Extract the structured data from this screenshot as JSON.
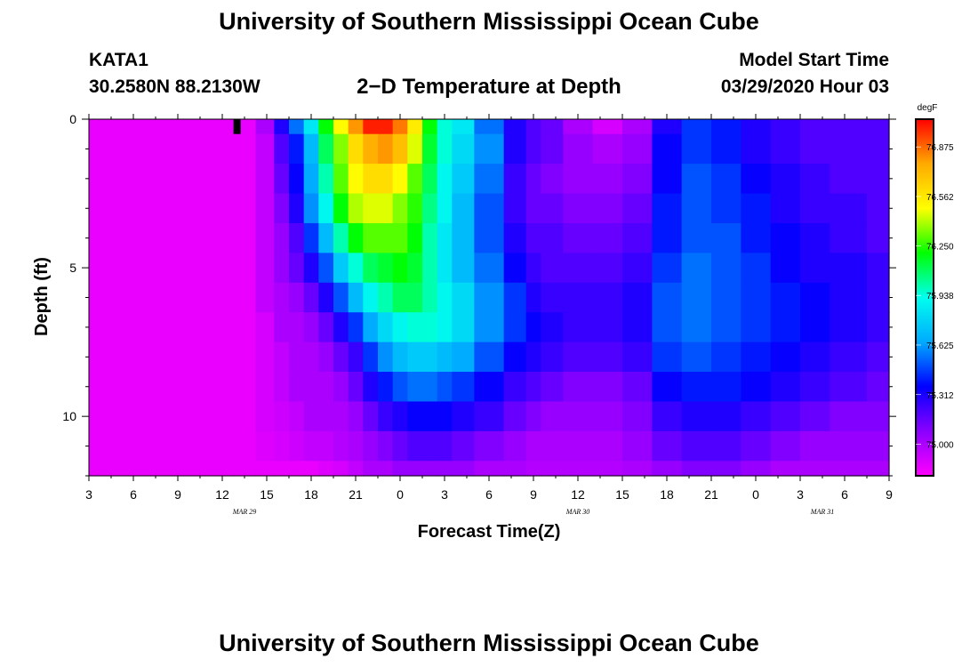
{
  "header": {
    "title": "University of Southern Mississippi Ocean Cube",
    "station": "KATA1",
    "coords": "30.2580N 88.2130W",
    "subtitle": "2−D Temperature at Depth",
    "start_label": "Model Start Time",
    "start_value": "03/29/2020 Hour 03",
    "footer_title": "University of Southern Mississippi Ocean Cube"
  },
  "chart_data": {
    "type": "heatmap",
    "title": "2−D Temperature at Depth",
    "xlabel": "Forecast Time(Z)",
    "ylabel": "Depth (ft)",
    "x_tick_labels": [
      "3",
      "6",
      "9",
      "12",
      "15",
      "18",
      "21",
      "0",
      "3",
      "6",
      "9",
      "12",
      "15",
      "18",
      "21",
      "0",
      "3",
      "6",
      "9"
    ],
    "x_range_hours": [
      3,
      57
    ],
    "date_labels": [
      {
        "text": "MAR 29",
        "at_hour": 13.5
      },
      {
        "text": "MAR 30",
        "at_hour": 36
      },
      {
        "text": "MAR 31",
        "at_hour": 52.5
      }
    ],
    "y_tick_labels": [
      "0",
      "5",
      "10"
    ],
    "ylim": [
      0,
      12
    ],
    "y_inverted": true,
    "colorbar": {
      "unit": "degF",
      "labels": [
        "76.875",
        "76.562",
        "76.250",
        "75.938",
        "75.625",
        "75.312",
        "75.000"
      ],
      "min": 74.8,
      "max": 77.05,
      "colors": [
        "#ff00ff",
        "#8a00ff",
        "#0000ff",
        "#00aaff",
        "#00ffee",
        "#00ff00",
        "#ffff00",
        "#ffaa00",
        "#ff0000"
      ]
    },
    "marker": {
      "hour": 13,
      "depth_top": 0,
      "depth_bottom": 0.5,
      "color": "#000000"
    },
    "depth_levels": [
      0,
      1,
      2,
      3,
      4,
      5,
      6,
      7,
      8,
      9,
      10,
      11,
      12
    ],
    "time_hours": [
      3,
      6,
      9,
      12,
      13.5,
      15,
      16,
      17,
      18,
      19,
      20,
      21,
      22,
      23,
      24,
      25,
      26,
      27,
      28,
      30,
      32,
      33,
      34,
      36,
      38,
      40,
      42,
      44,
      46,
      48,
      50,
      52,
      54,
      57
    ],
    "temperature_degF": [
      [
        74.85,
        74.85,
        74.85,
        74.85,
        74.85,
        75.0,
        75.3,
        75.55,
        75.85,
        76.2,
        76.5,
        76.8,
        77.0,
        77.0,
        76.85,
        76.55,
        76.2,
        75.95,
        75.85,
        75.55,
        75.3,
        75.2,
        75.15,
        75.0,
        74.9,
        75.0,
        75.3,
        75.45,
        75.4,
        75.3,
        75.25,
        75.2,
        75.2,
        75.2
      ],
      [
        74.85,
        74.85,
        74.85,
        74.85,
        74.85,
        74.95,
        75.2,
        75.4,
        75.7,
        76.1,
        76.35,
        76.6,
        76.75,
        76.8,
        76.7,
        76.45,
        76.15,
        75.95,
        75.8,
        75.6,
        75.3,
        75.2,
        75.15,
        75.05,
        75.0,
        75.05,
        75.35,
        75.45,
        75.4,
        75.3,
        75.25,
        75.2,
        75.2,
        75.2
      ],
      [
        74.85,
        74.85,
        74.85,
        74.85,
        74.85,
        74.95,
        75.15,
        75.35,
        75.65,
        76.0,
        76.3,
        76.5,
        76.6,
        76.6,
        76.5,
        76.3,
        76.1,
        75.9,
        75.75,
        75.55,
        75.25,
        75.15,
        75.1,
        75.05,
        75.05,
        75.1,
        75.35,
        75.5,
        75.45,
        75.35,
        75.3,
        75.25,
        75.2,
        75.2
      ],
      [
        74.85,
        74.85,
        74.85,
        74.85,
        74.85,
        74.95,
        75.1,
        75.3,
        75.6,
        75.9,
        76.2,
        76.4,
        76.45,
        76.45,
        76.35,
        76.25,
        76.05,
        75.9,
        75.7,
        75.5,
        75.25,
        75.15,
        75.15,
        75.1,
        75.1,
        75.15,
        75.4,
        75.5,
        75.45,
        75.4,
        75.3,
        75.25,
        75.25,
        75.2
      ],
      [
        74.85,
        74.85,
        74.85,
        74.85,
        74.85,
        74.95,
        75.05,
        75.2,
        75.45,
        75.7,
        76.0,
        76.2,
        76.3,
        76.3,
        76.3,
        76.2,
        76.0,
        75.85,
        75.7,
        75.5,
        75.3,
        75.2,
        75.2,
        75.15,
        75.15,
        75.2,
        75.4,
        75.5,
        75.5,
        75.4,
        75.35,
        75.3,
        75.25,
        75.2
      ],
      [
        74.85,
        74.85,
        74.85,
        74.85,
        74.85,
        74.95,
        75.05,
        75.15,
        75.3,
        75.5,
        75.75,
        75.95,
        76.1,
        76.15,
        76.2,
        76.15,
        76.0,
        75.85,
        75.7,
        75.55,
        75.35,
        75.25,
        75.2,
        75.2,
        75.2,
        75.25,
        75.45,
        75.55,
        75.5,
        75.45,
        75.35,
        75.3,
        75.3,
        75.25
      ],
      [
        74.85,
        74.85,
        74.85,
        74.85,
        74.85,
        74.95,
        75.0,
        75.05,
        75.15,
        75.3,
        75.5,
        75.7,
        75.9,
        76.0,
        76.1,
        76.1,
        76.0,
        75.9,
        75.8,
        75.6,
        75.45,
        75.3,
        75.25,
        75.25,
        75.25,
        75.3,
        75.5,
        75.55,
        75.5,
        75.45,
        75.4,
        75.35,
        75.3,
        75.25
      ],
      [
        74.85,
        74.85,
        74.85,
        74.85,
        74.85,
        74.9,
        75.0,
        75.0,
        75.05,
        75.15,
        75.3,
        75.45,
        75.65,
        75.8,
        75.9,
        75.95,
        75.95,
        75.9,
        75.8,
        75.6,
        75.45,
        75.35,
        75.3,
        75.25,
        75.25,
        75.3,
        75.5,
        75.55,
        75.5,
        75.45,
        75.4,
        75.35,
        75.3,
        75.25
      ],
      [
        74.85,
        74.85,
        74.85,
        74.85,
        74.85,
        74.9,
        74.95,
        75.0,
        75.0,
        75.05,
        75.15,
        75.25,
        75.45,
        75.6,
        75.7,
        75.75,
        75.75,
        75.7,
        75.65,
        75.5,
        75.35,
        75.3,
        75.25,
        75.2,
        75.2,
        75.25,
        75.45,
        75.5,
        75.45,
        75.4,
        75.35,
        75.3,
        75.25,
        75.2
      ],
      [
        74.85,
        74.85,
        74.85,
        74.85,
        74.85,
        74.9,
        74.95,
        75.0,
        75.0,
        75.0,
        75.05,
        75.15,
        75.3,
        75.4,
        75.5,
        75.55,
        75.55,
        75.5,
        75.45,
        75.35,
        75.25,
        75.2,
        75.15,
        75.1,
        75.1,
        75.15,
        75.35,
        75.4,
        75.4,
        75.35,
        75.3,
        75.25,
        75.2,
        75.15
      ],
      [
        74.85,
        74.85,
        74.85,
        74.85,
        74.85,
        74.9,
        74.92,
        74.95,
        75.0,
        75.0,
        75.0,
        75.05,
        75.15,
        75.25,
        75.3,
        75.35,
        75.35,
        75.35,
        75.3,
        75.25,
        75.15,
        75.1,
        75.05,
        75.05,
        75.05,
        75.1,
        75.25,
        75.3,
        75.3,
        75.25,
        75.2,
        75.15,
        75.1,
        75.1
      ],
      [
        74.85,
        74.85,
        74.85,
        74.85,
        74.85,
        74.88,
        74.9,
        74.92,
        74.95,
        74.95,
        74.98,
        75.0,
        75.05,
        75.1,
        75.15,
        75.2,
        75.2,
        75.2,
        75.15,
        75.1,
        75.05,
        75.0,
        75.0,
        75.0,
        75.0,
        75.05,
        75.15,
        75.2,
        75.2,
        75.15,
        75.1,
        75.05,
        75.05,
        75.05
      ],
      [
        74.85,
        74.85,
        74.85,
        74.85,
        74.85,
        74.85,
        74.85,
        74.85,
        74.85,
        74.88,
        74.9,
        74.95,
        75.0,
        75.0,
        75.05,
        75.05,
        75.05,
        75.05,
        75.05,
        75.0,
        75.0,
        74.98,
        74.98,
        74.98,
        74.98,
        75.0,
        75.05,
        75.1,
        75.1,
        75.05,
        75.0,
        75.0,
        75.0,
        75.0
      ]
    ]
  }
}
